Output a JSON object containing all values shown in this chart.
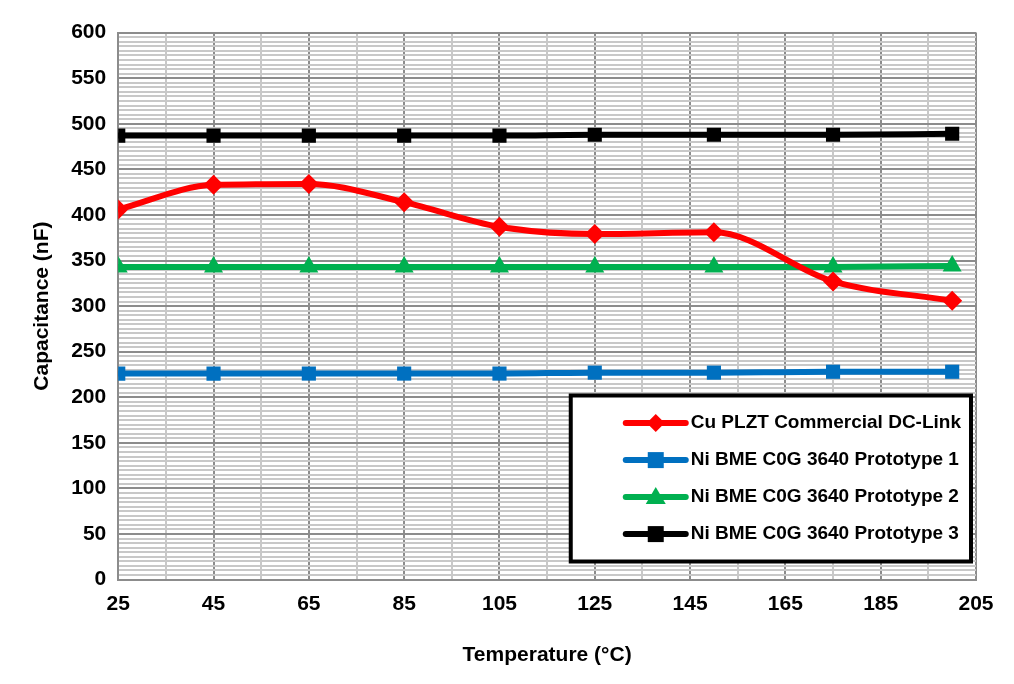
{
  "chart_data": {
    "type": "line",
    "xlabel": "Temperature (°C)",
    "ylabel": "Capacitance (nF)",
    "x": [
      25,
      45,
      65,
      85,
      105,
      125,
      150,
      175,
      200
    ],
    "xlim": [
      25,
      205
    ],
    "xticks": [
      25,
      {
        "value": 35,
        "label": null
      },
      45,
      {
        "value": 55,
        "label": null
      },
      65,
      {
        "value": 75,
        "label": null
      },
      85,
      {
        "value": 95,
        "label": null
      },
      105,
      {
        "value": 115,
        "label": null
      },
      125,
      {
        "value": 135,
        "label": null
      },
      145,
      {
        "value": 155,
        "label": null
      },
      165,
      {
        "value": 175,
        "label": null
      },
      185,
      {
        "value": 195,
        "label": null
      },
      205
    ],
    "ylim": [
      0,
      600
    ],
    "yticks": [
      0,
      {
        "value": 5,
        "label": null
      },
      {
        "value": 10,
        "label": null
      },
      {
        "value": 15,
        "label": null
      },
      {
        "value": 20,
        "label": null
      },
      {
        "value": 25,
        "label": null
      },
      {
        "value": 30,
        "label": null
      },
      {
        "value": 35,
        "label": null
      },
      {
        "value": 40,
        "label": null
      },
      {
        "value": 45,
        "label": null
      },
      50,
      {
        "value": 55,
        "label": null
      },
      {
        "value": 60,
        "label": null
      },
      {
        "value": 65,
        "label": null
      },
      {
        "value": 70,
        "label": null
      },
      {
        "value": 75,
        "label": null
      },
      {
        "value": 80,
        "label": null
      },
      {
        "value": 85,
        "label": null
      },
      {
        "value": 90,
        "label": null
      },
      {
        "value": 95,
        "label": null
      },
      100,
      {
        "value": 105,
        "label": null
      },
      {
        "value": 110,
        "label": null
      },
      {
        "value": 115,
        "label": null
      },
      {
        "value": 120,
        "label": null
      },
      {
        "value": 125,
        "label": null
      },
      {
        "value": 130,
        "label": null
      },
      {
        "value": 135,
        "label": null
      },
      {
        "value": 140,
        "label": null
      },
      {
        "value": 145,
        "label": null
      },
      150,
      {
        "value": 155,
        "label": null
      },
      {
        "value": 160,
        "label": null
      },
      {
        "value": 165,
        "label": null
      },
      {
        "value": 170,
        "label": null
      },
      {
        "value": 175,
        "label": null
      },
      {
        "value": 180,
        "label": null
      },
      {
        "value": 185,
        "label": null
      },
      {
        "value": 190,
        "label": null
      },
      {
        "value": 195,
        "label": null
      },
      200,
      {
        "value": 205,
        "label": null
      },
      {
        "value": 210,
        "label": null
      },
      {
        "value": 215,
        "label": null
      },
      {
        "value": 220,
        "label": null
      },
      {
        "value": 225,
        "label": null
      },
      {
        "value": 230,
        "label": null
      },
      {
        "value": 235,
        "label": null
      },
      {
        "value": 240,
        "label": null
      },
      {
        "value": 245,
        "label": null
      },
      250,
      {
        "value": 255,
        "label": null
      },
      {
        "value": 260,
        "label": null
      },
      {
        "value": 265,
        "label": null
      },
      {
        "value": 270,
        "label": null
      },
      {
        "value": 275,
        "label": null
      },
      {
        "value": 280,
        "label": null
      },
      {
        "value": 285,
        "label": null
      },
      {
        "value": 290,
        "label": null
      },
      {
        "value": 295,
        "label": null
      },
      300,
      {
        "value": 305,
        "label": null
      },
      {
        "value": 310,
        "label": null
      },
      {
        "value": 315,
        "label": null
      },
      {
        "value": 320,
        "label": null
      },
      {
        "value": 325,
        "label": null
      },
      {
        "value": 330,
        "label": null
      },
      {
        "value": 335,
        "label": null
      },
      {
        "value": 340,
        "label": null
      },
      {
        "value": 345,
        "label": null
      },
      350,
      {
        "value": 355,
        "label": null
      },
      {
        "value": 360,
        "label": null
      },
      {
        "value": 365,
        "label": null
      },
      {
        "value": 370,
        "label": null
      },
      {
        "value": 375,
        "label": null
      },
      {
        "value": 380,
        "label": null
      },
      {
        "value": 385,
        "label": null
      },
      {
        "value": 390,
        "label": null
      },
      {
        "value": 395,
        "label": null
      },
      400,
      {
        "value": 405,
        "label": null
      },
      {
        "value": 410,
        "label": null
      },
      {
        "value": 415,
        "label": null
      },
      {
        "value": 420,
        "label": null
      },
      {
        "value": 425,
        "label": null
      },
      {
        "value": 430,
        "label": null
      },
      {
        "value": 435,
        "label": null
      },
      {
        "value": 440,
        "label": null
      },
      {
        "value": 445,
        "label": null
      },
      450,
      {
        "value": 455,
        "label": null
      },
      {
        "value": 460,
        "label": null
      },
      {
        "value": 465,
        "label": null
      },
      {
        "value": 470,
        "label": null
      },
      {
        "value": 475,
        "label": null
      },
      {
        "value": 480,
        "label": null
      },
      {
        "value": 485,
        "label": null
      },
      {
        "value": 490,
        "label": null
      },
      {
        "value": 495,
        "label": null
      },
      500,
      {
        "value": 505,
        "label": null
      },
      {
        "value": 510,
        "label": null
      },
      {
        "value": 515,
        "label": null
      },
      {
        "value": 520,
        "label": null
      },
      {
        "value": 525,
        "label": null
      },
      {
        "value": 530,
        "label": null
      },
      {
        "value": 535,
        "label": null
      },
      {
        "value": 540,
        "label": null
      },
      {
        "value": 545,
        "label": null
      },
      550,
      {
        "value": 555,
        "label": null
      },
      {
        "value": 560,
        "label": null
      },
      {
        "value": 565,
        "label": null
      },
      {
        "value": 570,
        "label": null
      },
      {
        "value": 575,
        "label": null
      },
      {
        "value": 580,
        "label": null
      },
      {
        "value": 585,
        "label": null
      },
      {
        "value": 590,
        "label": null
      },
      {
        "value": 595,
        "label": null
      },
      600
    ],
    "grid": true,
    "legend": "bottom right",
    "line_style": "solid",
    "series": [
      {
        "name": "Cu PLZT Commercial DC-Link",
        "color": "#ff0000",
        "marker": "diamond",
        "values": [
          406,
          433,
          434,
          414,
          387,
          379,
          381,
          327,
          306
        ]
      },
      {
        "name": "Ni BME C0G 3640 Prototype 1",
        "color": "#0070c0",
        "marker": "square",
        "values": [
          226,
          226,
          226,
          226,
          226,
          227,
          227,
          228,
          228
        ]
      },
      {
        "name": "Ni BME C0G 3640 Prototype 2",
        "color": "#00b050",
        "marker": "triangle",
        "values": [
          343,
          343,
          343,
          343,
          343,
          343,
          343,
          343,
          344
        ]
      },
      {
        "name": "Ni BME C0G 3640 Prototype 3",
        "color": "#000000",
        "marker": "square",
        "values": [
          487,
          487,
          487,
          487,
          487,
          488,
          488,
          488,
          489
        ]
      }
    ]
  }
}
